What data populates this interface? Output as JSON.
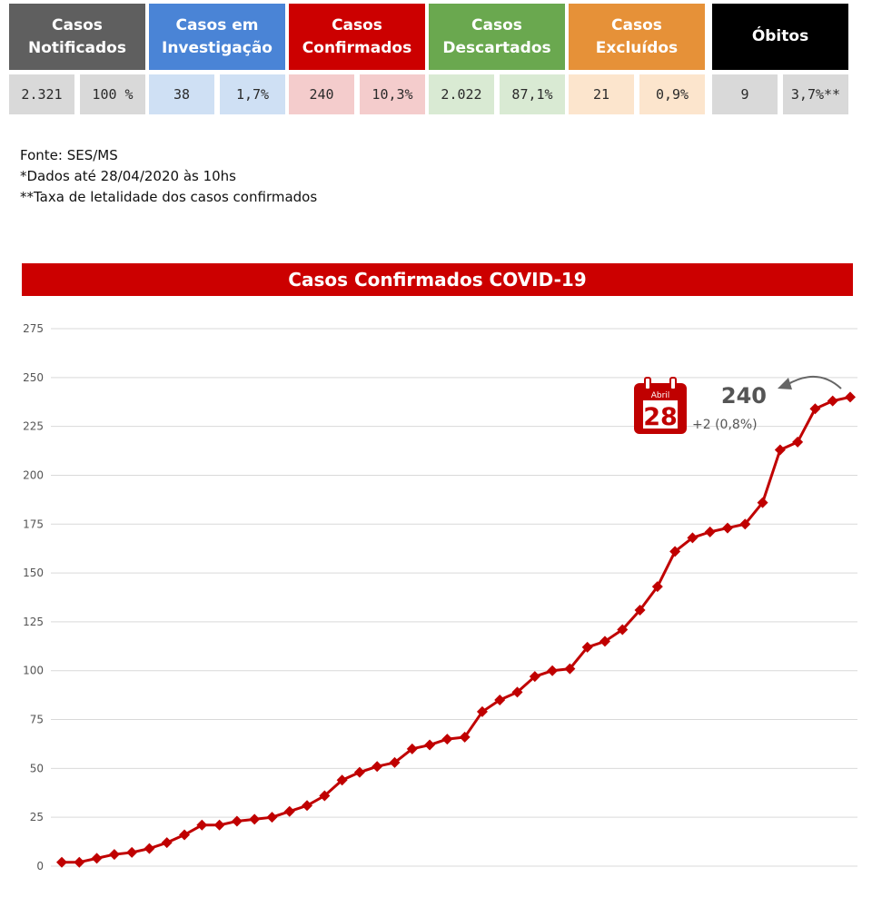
{
  "summary": [
    {
      "title": "Casos\nNotificados",
      "value": "2.321",
      "percent": "100 %",
      "color": "#5f5f5f",
      "cell_color": "#d9d9d9"
    },
    {
      "title": "Casos em\nInvestigação",
      "value": "38",
      "percent": "1,7%",
      "color": "#4a84d6",
      "cell_color": "#cfe0f4"
    },
    {
      "title": "Casos\nConfirmados",
      "value": "240",
      "percent": "10,3%",
      "color": "#cc0000",
      "cell_color": "#f4cccc"
    },
    {
      "title": "Casos\nDescartados",
      "value": "2.022",
      "percent": "87,1%",
      "color": "#6aa84f",
      "cell_color": "#d9ead3"
    },
    {
      "title": "Casos\nExcluídos",
      "value": "21",
      "percent": "0,9%",
      "color": "#e69138",
      "cell_color": "#fce5cd"
    },
    {
      "title": "Óbitos",
      "value": "9",
      "percent": "3,7%**",
      "color": "#000000",
      "cell_color": "#d9d9d9"
    }
  ],
  "notes": {
    "source": "Fonte: SES/MS",
    "date_note": "*Dados até 28/04/2020 às 10hs",
    "lethality_note": "**Taxa de letalidade dos casos confirmados"
  },
  "chart_data": {
    "type": "line",
    "title": "Casos Confirmados COVID-19",
    "ylim": [
      0,
      275
    ],
    "yticks": [
      0,
      25,
      50,
      75,
      100,
      125,
      150,
      175,
      200,
      225,
      250,
      275
    ],
    "grid": true,
    "line_color": "#c00000",
    "series": [
      {
        "values": [
          2,
          2,
          4,
          6,
          7,
          9,
          12,
          16,
          21,
          21,
          23,
          24,
          25,
          28,
          31,
          36,
          44,
          48,
          51,
          53,
          60,
          62,
          65,
          66,
          79,
          85,
          89,
          97,
          100,
          101,
          112,
          115,
          121,
          131,
          143,
          161,
          168,
          171,
          173,
          175,
          186,
          213,
          217,
          234,
          238,
          240
        ]
      }
    ],
    "annotation": {
      "value": "240",
      "change": "+2 (0,8%)",
      "calendar_month": "Abril",
      "calendar_day": "28"
    }
  }
}
